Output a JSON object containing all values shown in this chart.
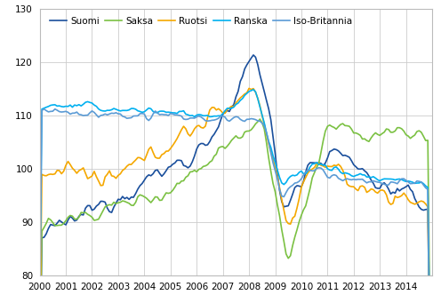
{
  "ylim": [
    80,
    130
  ],
  "xlim": [
    2000.0,
    2015.0
  ],
  "yticks": [
    80,
    90,
    100,
    110,
    120,
    130
  ],
  "xtick_labels": [
    "2000",
    "2001",
    "2002",
    "2003",
    "2004",
    "2005",
    "2006",
    "2007",
    "2008",
    "2009",
    "2010",
    "2011",
    "2012",
    "2013",
    "2014"
  ],
  "legend_labels": [
    "Suomi",
    "Saksa",
    "Ruotsi",
    "Ranska",
    "Iso-Britannia"
  ],
  "colors": {
    "Suomi": "#1a4f9c",
    "Saksa": "#7bc143",
    "Ruotsi": "#f5a800",
    "Ranska": "#00b0f0",
    "Iso-Britannia": "#5b9bd5"
  },
  "grid_color": "#cccccc",
  "background_color": "#ffffff",
  "legend_fontsize": 7.5,
  "tick_fontsize": 7.5,
  "n_points": 180,
  "line_width": 1.2
}
